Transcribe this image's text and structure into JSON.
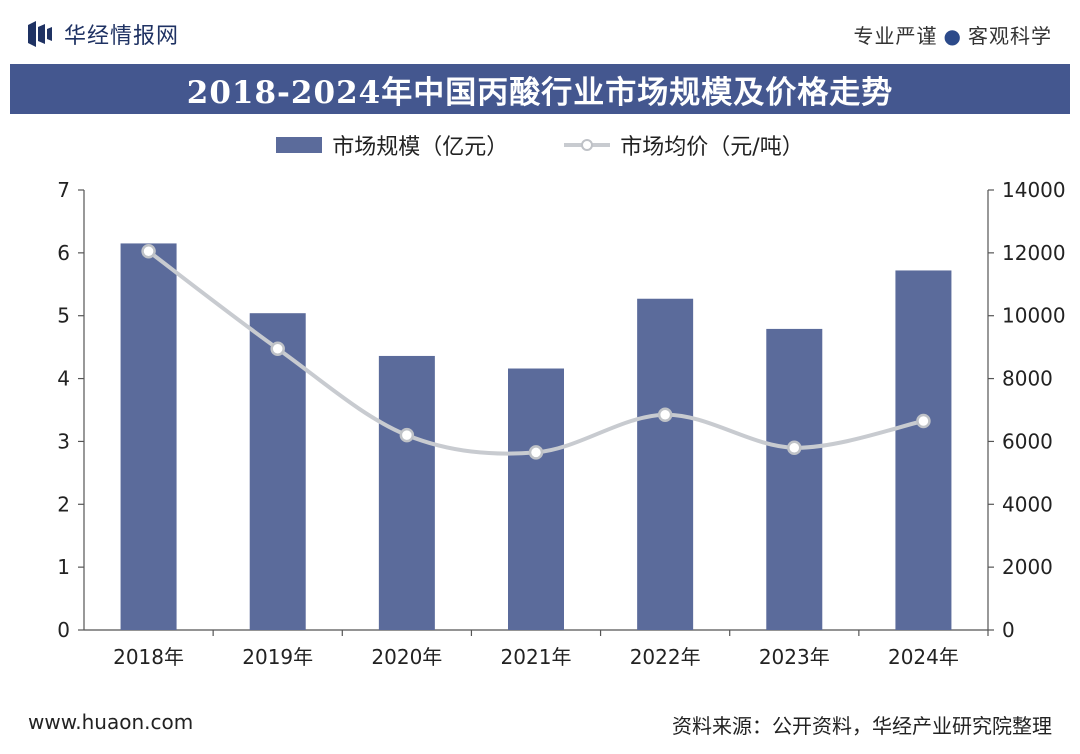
{
  "header": {
    "brand": "华经情报网",
    "slogan_left": "专业严谨",
    "slogan_right": "客观科学"
  },
  "title": "2018-2024年中国丙酸行业市场规模及价格走势",
  "legend": {
    "bar_label": "市场规模（亿元）",
    "line_label": "市场均价（元/吨）"
  },
  "footer": {
    "site": "www.huaon.com",
    "source": "资料来源：公开资料，华经产业研究院整理"
  },
  "colors": {
    "title_bg": "#44578f",
    "bar": "#5b6b9b",
    "line": "#c8cbd0",
    "marker_stroke": "#bfc2c7"
  },
  "chart_data": {
    "type": "bar+line",
    "categories": [
      "2018年",
      "2019年",
      "2020年",
      "2021年",
      "2022年",
      "2023年",
      "2024年"
    ],
    "series": [
      {
        "name": "市场规模（亿元）",
        "type": "bar",
        "axis": "left",
        "values": [
          6.15,
          5.04,
          4.36,
          4.16,
          5.27,
          4.79,
          5.72
        ]
      },
      {
        "name": "市场均价（元/吨）",
        "type": "line",
        "axis": "right",
        "values": [
          12050,
          8950,
          6200,
          5650,
          6850,
          5800,
          6650
        ]
      }
    ],
    "y_left": {
      "min": 0,
      "max": 7,
      "ticks": [
        "0",
        "1",
        "2",
        "3",
        "4",
        "5",
        "6",
        "7"
      ]
    },
    "y_right": {
      "min": 0,
      "max": 14000,
      "ticks": [
        "0",
        "2000",
        "4000",
        "6000",
        "8000",
        "10000",
        "12000",
        "14000"
      ]
    },
    "grid": false
  }
}
